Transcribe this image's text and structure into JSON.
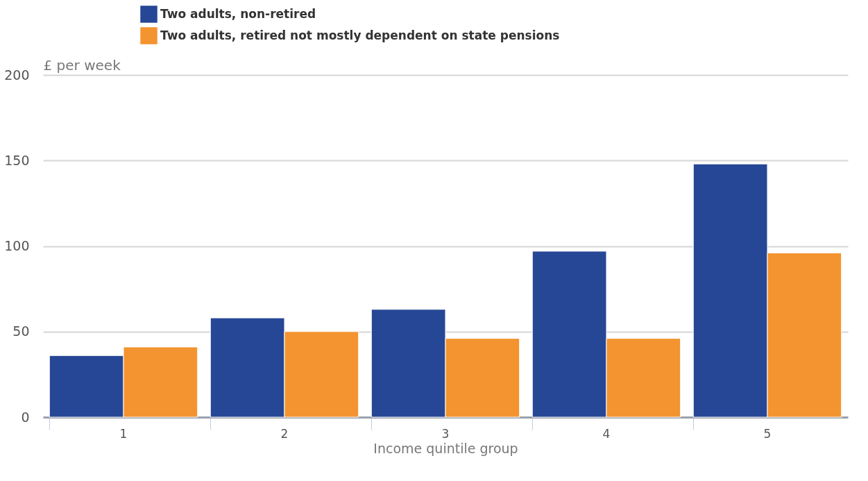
{
  "chart_data": {
    "type": "bar",
    "xlabel": "Income quintile group",
    "ylabel": "£ per week",
    "categories": [
      "1",
      "2",
      "3",
      "4",
      "5"
    ],
    "series": [
      {
        "name": "Two adults, non-retired",
        "color": "#264796",
        "values": [
          36,
          58,
          63,
          97,
          148
        ]
      },
      {
        "name": "Two adults, retired not mostly dependent on state pensions",
        "color": "#f39430",
        "values": [
          41,
          50,
          46,
          46,
          96
        ]
      }
    ],
    "ylim": [
      0,
      200
    ],
    "yticks": [
      0,
      50,
      100,
      150,
      200
    ],
    "grid": "y",
    "legend": "top"
  }
}
